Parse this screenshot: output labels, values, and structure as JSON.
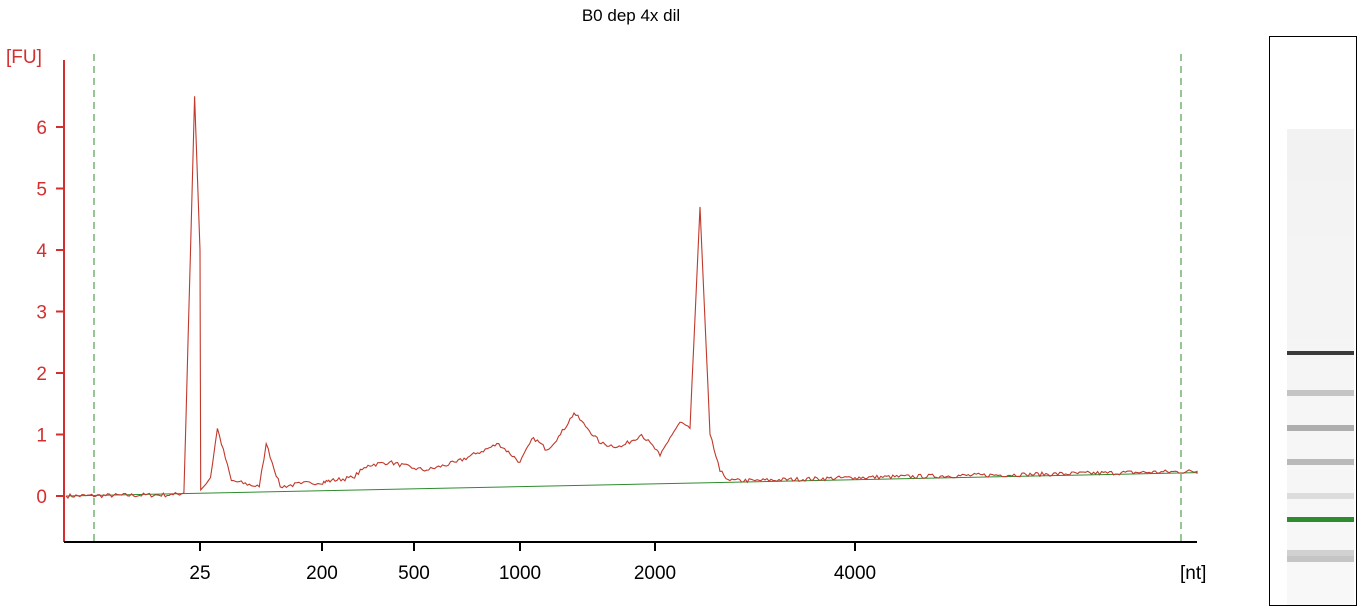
{
  "chart_data": {
    "type": "line",
    "title": "B0 dep 4x dil",
    "ylabel": "[FU]",
    "xlabel": "[nt]",
    "ylim": [
      -0.7,
      7.4
    ],
    "yticks": [
      0,
      1,
      2,
      3,
      4,
      5,
      6
    ],
    "xticks": [
      25,
      200,
      500,
      1000,
      2000,
      4000
    ],
    "series": [
      {
        "values": [
          [
            0,
            0.0
          ],
          [
            20,
            0.02
          ],
          [
            22,
            0.05
          ],
          [
            24,
            6.5
          ],
          [
            25,
            4.0
          ],
          [
            26,
            0.1
          ],
          [
            30,
            0.15
          ],
          [
            40,
            0.3
          ],
          [
            50,
            1.1
          ],
          [
            70,
            0.25
          ],
          [
            110,
            0.15
          ],
          [
            120,
            0.85
          ],
          [
            140,
            0.15
          ],
          [
            170,
            0.2
          ],
          [
            230,
            0.25
          ],
          [
            300,
            0.3
          ],
          [
            350,
            0.5
          ],
          [
            420,
            0.55
          ],
          [
            500,
            0.45
          ],
          [
            560,
            0.42
          ],
          [
            700,
            0.55
          ],
          [
            800,
            0.7
          ],
          [
            900,
            0.85
          ],
          [
            1000,
            0.55
          ],
          [
            1100,
            0.95
          ],
          [
            1200,
            0.75
          ],
          [
            1300,
            1.0
          ],
          [
            1400,
            1.35
          ],
          [
            1500,
            1.1
          ],
          [
            1600,
            0.85
          ],
          [
            1750,
            0.8
          ],
          [
            1900,
            1.0
          ],
          [
            2050,
            0.65
          ],
          [
            2150,
            0.95
          ],
          [
            2250,
            1.2
          ],
          [
            2350,
            1.1
          ],
          [
            2450,
            4.7
          ],
          [
            2550,
            1.0
          ],
          [
            2650,
            0.4
          ],
          [
            2750,
            0.25
          ],
          [
            3000,
            0.25
          ],
          [
            4000,
            0.3
          ],
          [
            5000,
            0.35
          ],
          [
            6000,
            0.4
          ]
        ]
      },
      {
        "values": [
          [
            0,
            0.0
          ],
          [
            6000,
            0.38
          ]
        ]
      }
    ],
    "markers": [
      {
        "type": "vertical_dashed",
        "position": "left"
      },
      {
        "type": "vertical_dashed",
        "position": "right"
      }
    ],
    "colors": {
      "trace": "#c0392b",
      "baseline": "#2e8b2e",
      "axis_y": "#e53935",
      "axis_x": "#000000",
      "markers": "#2e8b2e"
    }
  },
  "gel": {
    "bands": [
      {
        "position": 0.55,
        "intensity": 0.85
      },
      {
        "position": 0.62,
        "intensity": 0.25
      },
      {
        "position": 0.68,
        "intensity": 0.35
      },
      {
        "position": 0.74,
        "intensity": 0.3
      },
      {
        "position": 0.8,
        "intensity": 0.15
      },
      {
        "position": 0.9,
        "intensity": 0.2
      },
      {
        "position": 0.91,
        "intensity": 0.25
      }
    ],
    "marker_color": "#2e8b2e"
  }
}
